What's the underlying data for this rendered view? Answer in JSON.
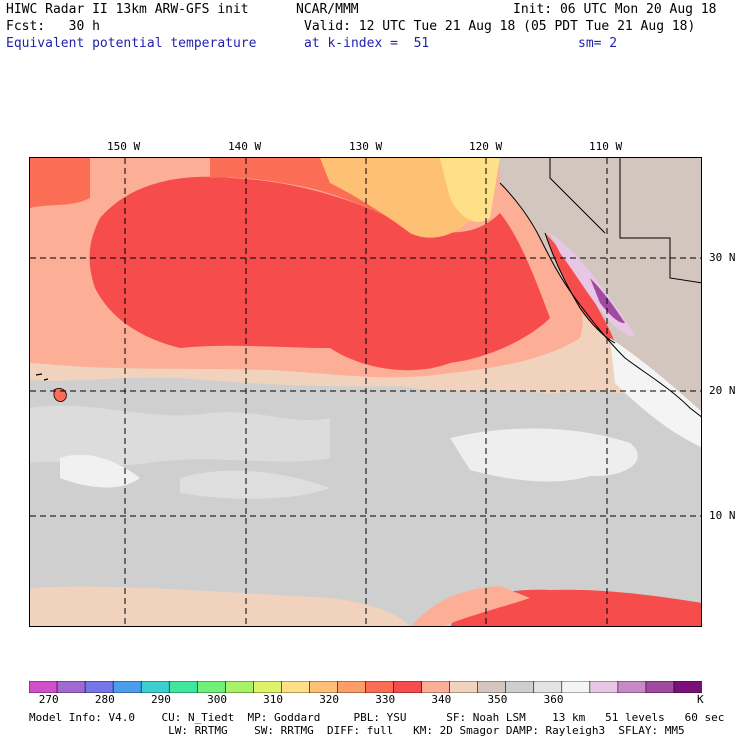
{
  "header": {
    "line1_left": "HIWC Radar II 13km ARW-GFS init",
    "line1_mid": "NCAR/MMM",
    "line1_right": "Init: 06 UTC Mon 20 Aug 18",
    "line2_left": "Fcst:   30 h",
    "line2_right": "Valid: 12 UTC Tue 21 Aug 18 (05 PDT Tue 21 Aug 18)",
    "line3_field": "Equivalent potential temperature",
    "line3_level": "at k-index =  51",
    "line3_smooth": "sm= 2"
  },
  "map": {
    "lon_labels": [
      "150 W",
      "140 W",
      "130 W",
      "120 W",
      "110 W"
    ],
    "lat_labels": [
      "30 N",
      "20 N",
      "10 N"
    ]
  },
  "colorbar": {
    "colors": [
      "#d24fcc",
      "#a06ad2",
      "#7676e8",
      "#4a9eee",
      "#3ccfcf",
      "#3fe6a0",
      "#6ef07a",
      "#a8f26a",
      "#e0f26a",
      "#fde087",
      "#fdc075",
      "#fd9e6a",
      "#fb6e55",
      "#f64c4c",
      "#fdae96",
      "#f1d3bd",
      "#d2c6bf",
      "#cfcfcf",
      "#e3e3e3",
      "#f4f4f4",
      "#e8c6e6",
      "#c78ac6",
      "#a04aa0",
      "#7a107a"
    ],
    "tick_labels": [
      "270",
      "280",
      "290",
      "300",
      "310",
      "320",
      "330",
      "340",
      "350",
      "360"
    ],
    "unit": "K"
  },
  "footer": {
    "line1": "Model Info: V4.0    CU: N_Tiedt  MP: Goddard     PBL: YSU      SF: Noah LSM    13 km   51 levels   60 sec",
    "line2": "                     LW: RRTMG    SW: RRTMG  DIFF: full   KM: 2D Smagor DAMP: Rayleigh3  SFLAY: MM5"
  }
}
